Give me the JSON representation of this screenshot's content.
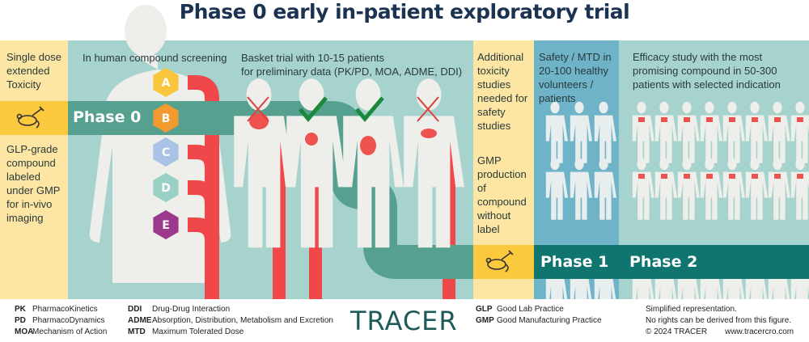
{
  "title": "Phase 0 early in-patient exploratory trial",
  "columns": {
    "preclinical": {
      "top": "Single dose extended Toxicity",
      "bottom": "GLP-grade compound labeled under GMP for in-vivo imaging"
    },
    "screening": {
      "heading": "In human compound screening",
      "compounds": [
        "A",
        "B",
        "C",
        "D",
        "E"
      ]
    },
    "basket": {
      "heading_line1": "Basket trial with 10-15 patients",
      "heading_line2": "for preliminary data (PK/PD, MOA, ADME, DDI)"
    },
    "additional": {
      "top": "Additional toxicity studies needed for safety studies",
      "bottom": "GMP production of compound without label"
    },
    "safety": {
      "heading": "Safety / MTD in 20-100 healthy volunteers / patients"
    },
    "efficacy": {
      "heading": "Efficacy study with the most promising compound in 50-300 patients with selected indication"
    }
  },
  "phases": {
    "phase0": "Phase 0",
    "phase1": "Phase 1",
    "phase2": "Phase 2"
  },
  "compound_colors": [
    "#f9c53a",
    "#f29a2e",
    "#a9c2e6",
    "#9ad1c6",
    "#9b3a8c"
  ],
  "basket_results": [
    "cross",
    "check",
    "check",
    "cross"
  ],
  "colors": {
    "title": "#1b3350",
    "light_yellow": "#fde6a3",
    "yellow": "#fbc93d",
    "teal_light": "#a6d3cd",
    "teal": "#55a08f",
    "blue": "#6fb3c9",
    "teal_dark": "#11756f",
    "red": "#f0484a",
    "check": "#1a8a3a"
  },
  "icons": [
    "mouse-syringe-icon",
    "human-silhouette-icon",
    "lungs-icon",
    "stomach-icon",
    "intestine-icon",
    "liver-icon",
    "check-icon",
    "cross-icon"
  ],
  "footer": {
    "abbreviations_left": [
      {
        "abbr": "PK",
        "full": "PharmacoKinetics"
      },
      {
        "abbr": "PD",
        "full": "PharmacoDynamics"
      },
      {
        "abbr": "MOA",
        "full": "Mechanism of Action"
      }
    ],
    "abbreviations_mid": [
      {
        "abbr": "DDI",
        "full": "Drug-Drug Interaction"
      },
      {
        "abbr": "ADME",
        "full": "Absorption, Distribution, Metabolism and Excretion"
      },
      {
        "abbr": "MTD",
        "full": "Maximum Tolerated Dose"
      }
    ],
    "logo": "TRACER",
    "abbreviations_right": [
      {
        "abbr": "GLP",
        "full": "Good Lab Practice"
      },
      {
        "abbr": "GMP",
        "full": "Good Manufacturing Practice"
      }
    ],
    "disclaimer1": "Simplified representation.",
    "disclaimer2": "No rights can be derived from this figure.",
    "copyright": "© 2024 TRACER",
    "website": "www.tracercro.com"
  }
}
